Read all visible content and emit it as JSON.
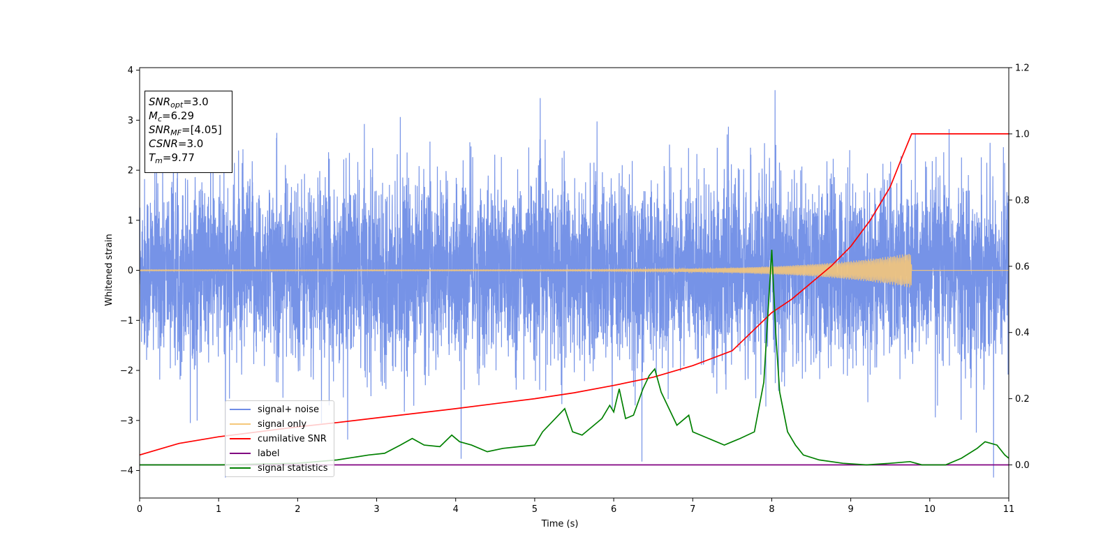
{
  "chart_data": {
    "type": "line",
    "xlabel": "Time (s)",
    "ylabel": "Whitened strain",
    "xlim": [
      0,
      11
    ],
    "ylim_left": [
      -4.55,
      4.05
    ],
    "ylim_right": [
      -0.1,
      1.2
    ],
    "x_ticks": [
      "0",
      "1",
      "2",
      "3",
      "4",
      "5",
      "6",
      "7",
      "8",
      "9",
      "10",
      "11"
    ],
    "y_ticks_left": [
      "−4",
      "−3",
      "−2",
      "−1",
      "0",
      "1",
      "2",
      "3",
      "4"
    ],
    "y_ticks_right": [
      "0.0",
      "0.2",
      "0.4",
      "0.6",
      "0.8",
      "1.0",
      "1.2"
    ],
    "legend_placement": "lower-left",
    "series": [
      {
        "name": "signal+ noise",
        "axis": "left",
        "color": "#6f8de6",
        "envelope_typical": 1.6,
        "envelope_max": 3.6,
        "description_values": "gaussian whitened noise, roughly ±2.5 with spikes to about ±3.6"
      },
      {
        "name": "signal only",
        "axis": "left",
        "color": "#f5c77a",
        "chirp_start": 0.0,
        "chirp_end": 9.77,
        "amplitude_start": 0.01,
        "amplitude_end": 0.35
      },
      {
        "name": "cumilative SNR",
        "axis": "right",
        "color": "#ff0000",
        "x": [
          0,
          0.5,
          1,
          1.5,
          2,
          2.5,
          3,
          3.5,
          4,
          4.5,
          5,
          5.5,
          6,
          6.5,
          7,
          7.5,
          8,
          8.25,
          8.5,
          8.75,
          9,
          9.25,
          9.5,
          9.65,
          9.77,
          10,
          10.5,
          11
        ],
        "values": [
          0.03,
          0.065,
          0.085,
          0.1,
          0.115,
          0.128,
          0.142,
          0.156,
          0.17,
          0.185,
          0.2,
          0.218,
          0.24,
          0.265,
          0.3,
          0.345,
          0.46,
          0.5,
          0.55,
          0.6,
          0.66,
          0.74,
          0.84,
          0.93,
          1.0,
          1.0,
          1.0,
          1.0
        ]
      },
      {
        "name": "label",
        "axis": "right",
        "color": "#800080",
        "x": [
          0,
          11
        ],
        "values": [
          0.0,
          0.0
        ]
      },
      {
        "name": "signal statistics",
        "axis": "right",
        "color": "#008000",
        "x": [
          0,
          1,
          2,
          2.5,
          2.9,
          3.1,
          3.3,
          3.45,
          3.6,
          3.8,
          3.95,
          4.05,
          4.2,
          4.4,
          4.6,
          4.8,
          5.0,
          5.1,
          5.3,
          5.38,
          5.48,
          5.6,
          5.75,
          5.85,
          5.95,
          6.0,
          6.07,
          6.15,
          6.25,
          6.37,
          6.45,
          6.52,
          6.6,
          6.8,
          6.95,
          7.0,
          7.2,
          7.4,
          7.5,
          7.6,
          7.78,
          7.9,
          8.0,
          8.05,
          8.1,
          8.2,
          8.3,
          8.4,
          8.6,
          8.9,
          9.2,
          9.5,
          9.75,
          9.9,
          10.2,
          10.4,
          10.6,
          10.7,
          10.85,
          10.95,
          11
        ],
        "values": [
          0.0,
          0.0,
          0.005,
          0.015,
          0.03,
          0.035,
          0.06,
          0.08,
          0.06,
          0.055,
          0.09,
          0.07,
          0.06,
          0.04,
          0.05,
          0.055,
          0.06,
          0.1,
          0.15,
          0.17,
          0.1,
          0.09,
          0.12,
          0.14,
          0.18,
          0.16,
          0.23,
          0.14,
          0.15,
          0.23,
          0.27,
          0.29,
          0.22,
          0.12,
          0.15,
          0.1,
          0.08,
          0.06,
          0.07,
          0.08,
          0.1,
          0.25,
          0.65,
          0.4,
          0.22,
          0.1,
          0.06,
          0.03,
          0.015,
          0.005,
          0.0,
          0.005,
          0.01,
          0.0,
          0.0,
          0.02,
          0.05,
          0.07,
          0.06,
          0.03,
          0.02
        ]
      }
    ],
    "annotations": [
      {
        "base": "SNR",
        "sub": "opt",
        "rest": "=3.0"
      },
      {
        "base": "M",
        "sub": "c",
        "rest": "=6.29"
      },
      {
        "base": "SNR",
        "sub": "MF",
        "rest": "=[4.05]"
      },
      {
        "base": "CSNR",
        "sub": "",
        "rest": "=3.0"
      },
      {
        "base": "T",
        "sub": "m",
        "rest": "=9.77"
      }
    ]
  }
}
